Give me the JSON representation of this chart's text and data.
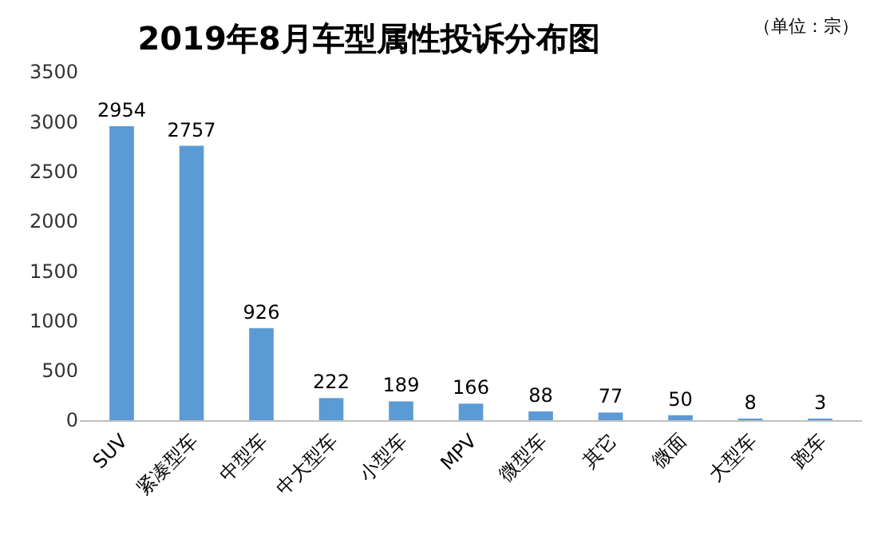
{
  "chart_data": {
    "type": "bar",
    "title": "2019年8月车型属性投诉分布图",
    "annotations": [
      "（单位：宗）"
    ],
    "categories": [
      "SUV",
      "紧凑型车",
      "中型车",
      "中大型车",
      "小型车",
      "MPV",
      "微型车",
      "其它",
      "微面",
      "大型车",
      "跑车"
    ],
    "values": [
      2954,
      2757,
      926,
      222,
      189,
      166,
      88,
      77,
      50,
      8,
      3
    ],
    "color": "#5b9bd5",
    "ylim": [
      0,
      3500
    ],
    "yticks": [
      0,
      500,
      1000,
      1500,
      2000,
      2500,
      3000,
      3500
    ],
    "data_labels": true
  }
}
